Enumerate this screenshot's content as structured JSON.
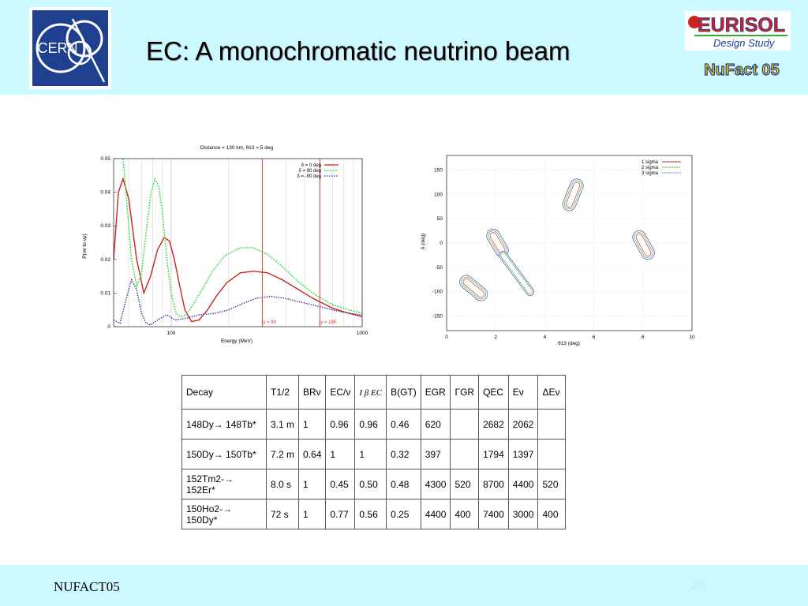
{
  "slide": {
    "title": "EC: A monochromatic neutrino beam",
    "footer_text": "NUFACT05",
    "page_number": "29"
  },
  "logos": {
    "cern": "CERN",
    "eurisol_word": "EURISOL",
    "eurisol_sub": "Design Study",
    "nufact": "NuFact 05"
  },
  "colors": {
    "band": "#ccf9ff",
    "red": "#cc2222",
    "green": "#33dd33",
    "blue": "#333399"
  },
  "chart_data": [
    {
      "type": "line",
      "title": "Distance = 130 km, θ13 = 5 deg",
      "xlabel": "Energy (MeV)",
      "ylabel": "P(νe to νμ)",
      "xscale": "log",
      "xlim": [
        50,
        1000
      ],
      "ylim": [
        0,
        0.05
      ],
      "xticks": [
        "100",
        "1000"
      ],
      "yticks": [
        "0",
        "0.01",
        "0.02",
        "0.03",
        "0.04",
        "0.05"
      ],
      "legend_position": "top-right",
      "annotations": [
        "γ = 90",
        "γ = 195"
      ],
      "annotation_x": [
        300,
        600
      ],
      "series": [
        {
          "name": "δ = 0 deg",
          "color": "#cc2222",
          "x": [
            50,
            53,
            56,
            60,
            66,
            72,
            78,
            85,
            92,
            98,
            104,
            111,
            118,
            128,
            140,
            155,
            172,
            195,
            230,
            270,
            320,
            380,
            450,
            550,
            700,
            850,
            1000
          ],
          "y": [
            0.02,
            0.04,
            0.044,
            0.038,
            0.02,
            0.01,
            0.015,
            0.023,
            0.0265,
            0.0255,
            0.02,
            0.012,
            0.005,
            0.0015,
            0.002,
            0.005,
            0.009,
            0.013,
            0.016,
            0.0165,
            0.016,
            0.014,
            0.0115,
            0.0085,
            0.0055,
            0.004,
            0.003
          ]
        },
        {
          "name": "δ = 90 deg",
          "color": "#33dd33",
          "x": [
            56,
            58,
            62,
            66,
            70,
            74,
            78,
            82,
            86,
            90,
            95,
            100,
            106,
            112,
            120,
            130,
            145,
            165,
            190,
            230,
            270,
            320,
            380,
            450,
            550,
            700,
            850,
            1000
          ],
          "y": [
            0.05,
            0.04,
            0.02,
            0.012,
            0.016,
            0.028,
            0.039,
            0.044,
            0.042,
            0.034,
            0.02,
            0.01,
            0.004,
            0.003,
            0.0035,
            0.0065,
            0.011,
            0.0165,
            0.021,
            0.0235,
            0.0235,
            0.0215,
            0.018,
            0.014,
            0.01,
            0.0065,
            0.005,
            0.004
          ]
        },
        {
          "name": "δ = -90 deg",
          "color": "#333399",
          "x": [
            50,
            54,
            58,
            62,
            66,
            70,
            74,
            78,
            85,
            95,
            105,
            120,
            140,
            170,
            200,
            240,
            280,
            330,
            390,
            460,
            550,
            700,
            850,
            1000
          ],
          "y": [
            0.002,
            0.001,
            0.008,
            0.014,
            0.011,
            0.004,
            0.001,
            0.0005,
            0.002,
            0.0035,
            0.002,
            0.0025,
            0.0035,
            0.004,
            0.005,
            0.007,
            0.0085,
            0.009,
            0.0085,
            0.0075,
            0.0065,
            0.005,
            0.004,
            0.0035
          ]
        }
      ]
    },
    {
      "type": "scatter",
      "xlabel": "θ13 (deg)",
      "ylabel": "δ (deg)",
      "xlim": [
        0,
        10
      ],
      "ylim": [
        -180,
        180
      ],
      "xticks": [
        "0",
        "2",
        "4",
        "6",
        "8",
        "10"
      ],
      "yticks": [
        "-150",
        "-100",
        "-50",
        "0",
        "50",
        "100",
        "150"
      ],
      "legend_position": "top-right",
      "series": [
        {
          "name": "1 sigma",
          "color": "#cc2222",
          "dash": "solid"
        },
        {
          "name": "2 sigma",
          "color": "#33aa33",
          "dash": "dashed"
        },
        {
          "name": "3 sigma",
          "color": "#3333aa",
          "dash": "dotted"
        }
      ],
      "regions": [
        {
          "x": [
            0.8,
            1.4
          ],
          "y": [
            -80,
            -105
          ],
          "widths": [
            0.28,
            0.42,
            0.56
          ]
        },
        {
          "x": [
            1.9,
            2.25
          ],
          "y": [
            15,
            -15
          ],
          "widths": [
            0.28,
            0.42,
            0.56
          ]
        },
        {
          "x": [
            2.3,
            3.4
          ],
          "y": [
            -25,
            -100
          ],
          "widths": [
            0.0,
            0.22,
            0.34
          ]
        },
        {
          "x": [
            5.0,
            5.3
          ],
          "y": [
            80,
            118
          ],
          "widths": [
            0.28,
            0.42,
            0.56
          ]
        },
        {
          "x": [
            7.85,
            8.2
          ],
          "y": [
            12,
            -20
          ],
          "widths": [
            0.28,
            0.42,
            0.56
          ]
        }
      ]
    }
  ],
  "table": {
    "headers": [
      "Decay",
      "T1/2",
      "BRν",
      "EC/ν",
      "I β EC",
      "B(GT)",
      "EGR",
      "ΓGR",
      "QEC",
      "Eν",
      "ΔEν"
    ],
    "rows": [
      [
        "148Dy→ 148Tb*",
        "3.1 m",
        "1",
        "0.96",
        "0.96",
        "0.46",
        "620",
        "",
        "2682",
        "2062",
        ""
      ],
      [
        "150Dy→ 150Tb*",
        "7.2 m",
        "0.64",
        "1",
        "1",
        "0.32",
        "397",
        "",
        "1794",
        "1397",
        ""
      ],
      [
        "152Tm2-→ 152Er*",
        "8.0 s",
        "1",
        "0.45",
        "0.50",
        "0.48",
        "4300",
        "520",
        "8700",
        "4400",
        "520"
      ],
      [
        "150Ho2-→ 150Dy*",
        "72 s",
        "1",
        "0.77",
        "0.56",
        "0.25",
        "4400",
        "400",
        "7400",
        "3000",
        "400"
      ]
    ]
  }
}
